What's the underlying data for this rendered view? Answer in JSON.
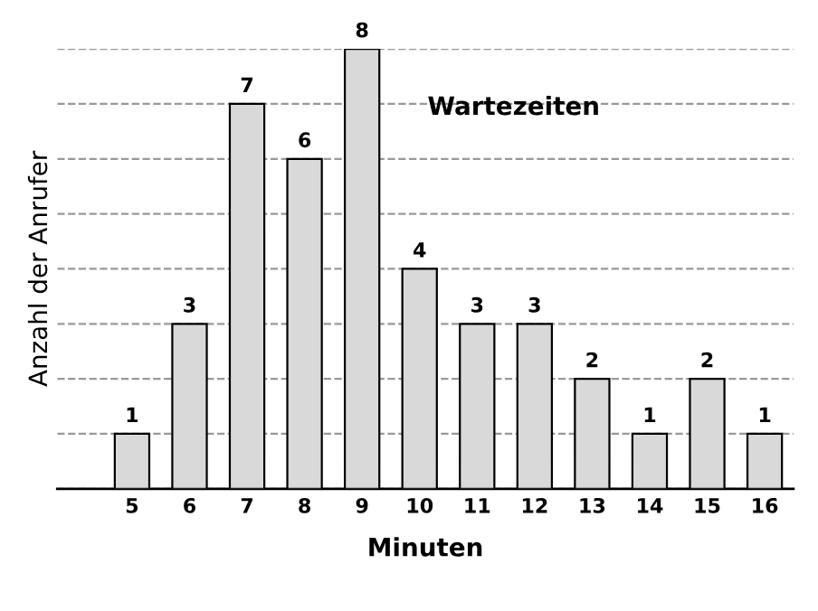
{
  "chart_data": {
    "type": "bar",
    "title": "Wartezeiten",
    "xlabel": "Minuten",
    "ylabel": "Anzahl der Anrufer",
    "categories": [
      "5",
      "6",
      "7",
      "8",
      "9",
      "10",
      "11",
      "12",
      "13",
      "14",
      "15",
      "16"
    ],
    "values": [
      1,
      3,
      7,
      6,
      8,
      4,
      3,
      3,
      2,
      1,
      2,
      1
    ],
    "color": "#d9d9d9",
    "data_labels": true,
    "grid": "y",
    "tick_labels": "x"
  }
}
